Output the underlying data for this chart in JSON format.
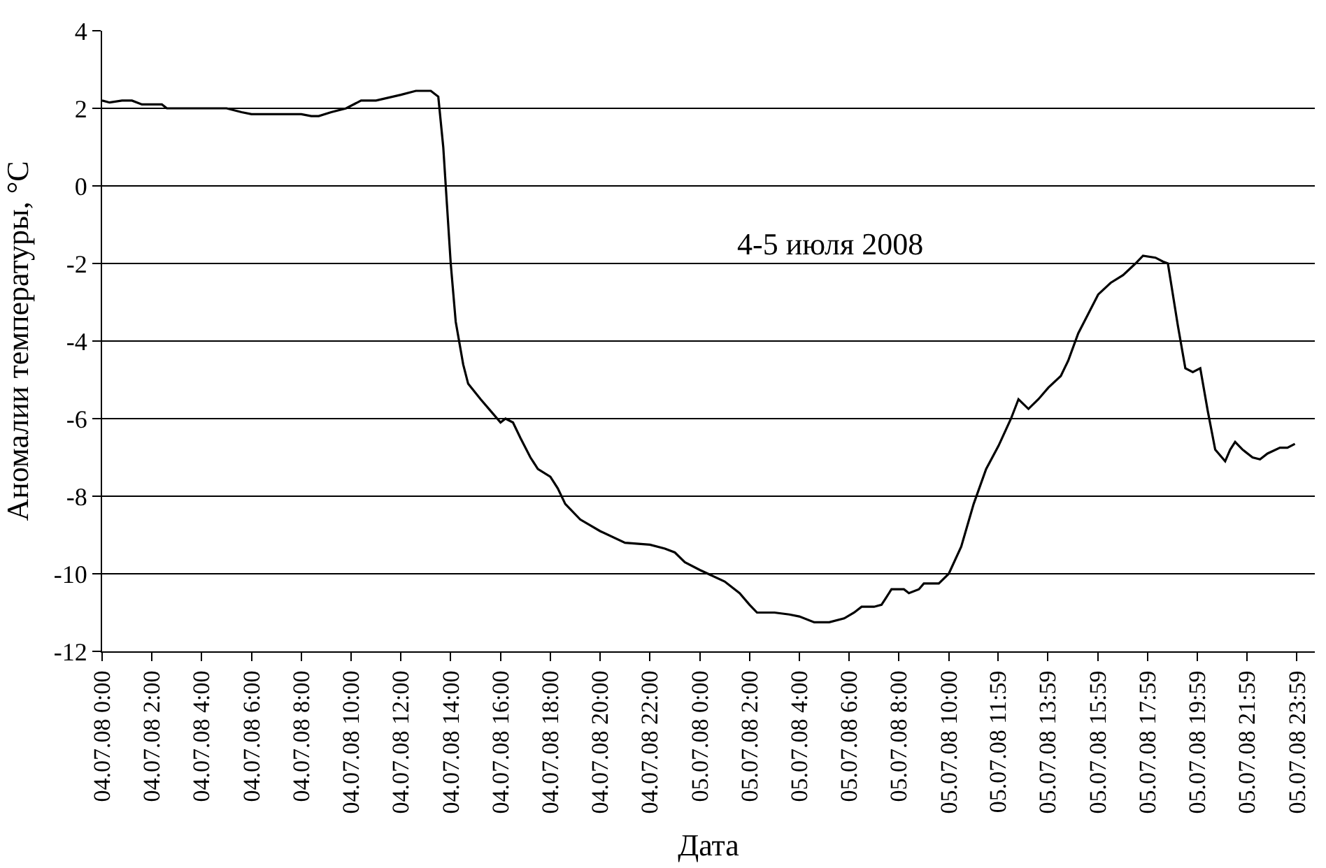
{
  "chart_data": {
    "type": "line",
    "xlabel": "Дата",
    "ylabel": "Аномалии температуры, °C",
    "annotations": [
      "4-5 июля 2008"
    ],
    "x": [
      "2008-07-04T00:00",
      "2008-07-04T00:18",
      "2008-07-04T00:48",
      "2008-07-04T01:12",
      "2008-07-04T01:36",
      "2008-07-04T02:24",
      "2008-07-04T02:36",
      "2008-07-04T04:00",
      "2008-07-04T05:00",
      "2008-07-04T05:36",
      "2008-07-04T06:00",
      "2008-07-04T07:00",
      "2008-07-04T08:00",
      "2008-07-04T08:24",
      "2008-07-04T08:42",
      "2008-07-04T09:12",
      "2008-07-04T09:48",
      "2008-07-04T10:24",
      "2008-07-04T11:00",
      "2008-07-04T12:00",
      "2008-07-04T12:36",
      "2008-07-04T13:12",
      "2008-07-04T13:30",
      "2008-07-04T13:42",
      "2008-07-04T13:51",
      "2008-07-04T14:00",
      "2008-07-04T14:12",
      "2008-07-04T14:30",
      "2008-07-04T14:42",
      "2008-07-04T15:12",
      "2008-07-04T15:36",
      "2008-07-04T16:00",
      "2008-07-04T16:12",
      "2008-07-04T16:30",
      "2008-07-04T16:48",
      "2008-07-04T17:12",
      "2008-07-04T17:30",
      "2008-07-04T18:00",
      "2008-07-04T18:18",
      "2008-07-04T18:36",
      "2008-07-04T19:12",
      "2008-07-04T20:00",
      "2008-07-04T21:00",
      "2008-07-04T22:00",
      "2008-07-04T22:36",
      "2008-07-04T23:00",
      "2008-07-04T23:24",
      "2008-07-05T00:00",
      "2008-07-05T01:00",
      "2008-07-05T01:36",
      "2008-07-05T02:00",
      "2008-07-05T02:18",
      "2008-07-05T03:00",
      "2008-07-05T03:36",
      "2008-07-05T04:00",
      "2008-07-05T04:36",
      "2008-07-05T05:12",
      "2008-07-05T05:48",
      "2008-07-05T06:12",
      "2008-07-05T06:30",
      "2008-07-05T07:00",
      "2008-07-05T07:18",
      "2008-07-05T07:30",
      "2008-07-05T07:42",
      "2008-07-05T08:12",
      "2008-07-05T08:24",
      "2008-07-05T08:48",
      "2008-07-05T09:00",
      "2008-07-05T09:36",
      "2008-07-05T10:00",
      "2008-07-05T10:30",
      "2008-07-05T11:00",
      "2008-07-05T11:30",
      "2008-07-05T12:00",
      "2008-07-05T12:30",
      "2008-07-05T12:48",
      "2008-07-05T13:12",
      "2008-07-05T13:36",
      "2008-07-05T14:00",
      "2008-07-05T14:30",
      "2008-07-05T14:48",
      "2008-07-05T15:12",
      "2008-07-05T15:36",
      "2008-07-05T16:00",
      "2008-07-05T16:30",
      "2008-07-05T17:00",
      "2008-07-05T17:30",
      "2008-07-05T17:48",
      "2008-07-05T18:18",
      "2008-07-05T18:36",
      "2008-07-05T18:48",
      "2008-07-05T19:12",
      "2008-07-05T19:30",
      "2008-07-05T19:48",
      "2008-07-05T20:06",
      "2008-07-05T20:24",
      "2008-07-05T20:42",
      "2008-07-05T21:06",
      "2008-07-05T21:18",
      "2008-07-05T21:30",
      "2008-07-05T21:48",
      "2008-07-05T22:12",
      "2008-07-05T22:30",
      "2008-07-05T22:48",
      "2008-07-05T23:18",
      "2008-07-05T23:36",
      "2008-07-05T23:54"
    ],
    "series": [
      {
        "color": "#000000",
        "values": [
          2.2,
          2.15,
          2.2,
          2.2,
          2.1,
          2.1,
          2.0,
          2.0,
          2.0,
          1.9,
          1.85,
          1.85,
          1.85,
          1.8,
          1.8,
          1.9,
          2.0,
          2.2,
          2.2,
          2.35,
          2.45,
          2.45,
          2.3,
          1.0,
          -0.5,
          -2.0,
          -3.5,
          -4.6,
          -5.1,
          -5.5,
          -5.8,
          -6.1,
          -6.0,
          -6.1,
          -6.5,
          -7.0,
          -7.3,
          -7.5,
          -7.8,
          -8.2,
          -8.6,
          -8.9,
          -9.2,
          -9.25,
          -9.35,
          -9.45,
          -9.7,
          -9.9,
          -10.2,
          -10.5,
          -10.8,
          -11.0,
          -11.0,
          -11.05,
          -11.1,
          -11.25,
          -11.25,
          -11.15,
          -11.0,
          -10.85,
          -10.85,
          -10.8,
          -10.6,
          -10.4,
          -10.4,
          -10.5,
          -10.4,
          -10.25,
          -10.25,
          -10.0,
          -9.3,
          -8.2,
          -7.3,
          -6.7,
          -6.0,
          -5.5,
          -5.75,
          -5.5,
          -5.2,
          -4.9,
          -4.5,
          -3.8,
          -3.3,
          -2.8,
          -2.5,
          -2.3,
          -2.0,
          -1.8,
          -1.85,
          -1.95,
          -2.0,
          -3.6,
          -4.7,
          -4.8,
          -4.7,
          -5.8,
          -6.8,
          -7.1,
          -6.8,
          -6.6,
          -6.8,
          -7.0,
          -7.05,
          -6.9,
          -6.75,
          -6.75,
          -6.65
        ]
      }
    ],
    "xlim": [
      "2008-07-04T00:00",
      "2008-07-06T00:42"
    ],
    "xticks": [
      {
        "value": "2008-07-04T00:00",
        "label": "04.07.08 0:00"
      },
      {
        "value": "2008-07-04T02:00",
        "label": "04.07.08 2:00"
      },
      {
        "value": "2008-07-04T04:00",
        "label": "04.07.08 4:00"
      },
      {
        "value": "2008-07-04T06:00",
        "label": "04.07.08 6:00"
      },
      {
        "value": "2008-07-04T08:00",
        "label": "04.07.08 8:00"
      },
      {
        "value": "2008-07-04T10:00",
        "label": "04.07.08 10:00"
      },
      {
        "value": "2008-07-04T12:00",
        "label": "04.07.08 12:00"
      },
      {
        "value": "2008-07-04T14:00",
        "label": "04.07.08 14:00"
      },
      {
        "value": "2008-07-04T16:00",
        "label": "04.07.08 16:00"
      },
      {
        "value": "2008-07-04T18:00",
        "label": "04.07.08 18:00"
      },
      {
        "value": "2008-07-04T20:00",
        "label": "04.07.08 20:00"
      },
      {
        "value": "2008-07-04T22:00",
        "label": "04.07.08 22:00"
      },
      {
        "value": "2008-07-05T00:00",
        "label": "05.07.08 0:00"
      },
      {
        "value": "2008-07-05T02:00",
        "label": "05.07.08 2:00"
      },
      {
        "value": "2008-07-05T04:00",
        "label": "05.07.08 4:00"
      },
      {
        "value": "2008-07-05T06:00",
        "label": "05.07.08 6:00"
      },
      {
        "value": "2008-07-05T08:00",
        "label": "05.07.08 8:00"
      },
      {
        "value": "2008-07-05T10:00",
        "label": "05.07.08 10:00"
      },
      {
        "value": "2008-07-05T11:59",
        "label": "05.07.08 11:59"
      },
      {
        "value": "2008-07-05T13:59",
        "label": "05.07.08 13:59"
      },
      {
        "value": "2008-07-05T15:59",
        "label": "05.07.08 15:59"
      },
      {
        "value": "2008-07-05T17:59",
        "label": "05.07.08 17:59"
      },
      {
        "value": "2008-07-05T19:59",
        "label": "05.07.08 19:59"
      },
      {
        "value": "2008-07-05T21:59",
        "label": "05.07.08 21:59"
      },
      {
        "value": "2008-07-05T23:59",
        "label": "05.07.08 23:59"
      }
    ],
    "ylim": [
      -12,
      4
    ],
    "yticks": [
      -12,
      -10,
      -8,
      -6,
      -4,
      -2,
      0,
      2,
      4
    ],
    "grid": "y",
    "marker": "none",
    "line_style": "solid"
  }
}
